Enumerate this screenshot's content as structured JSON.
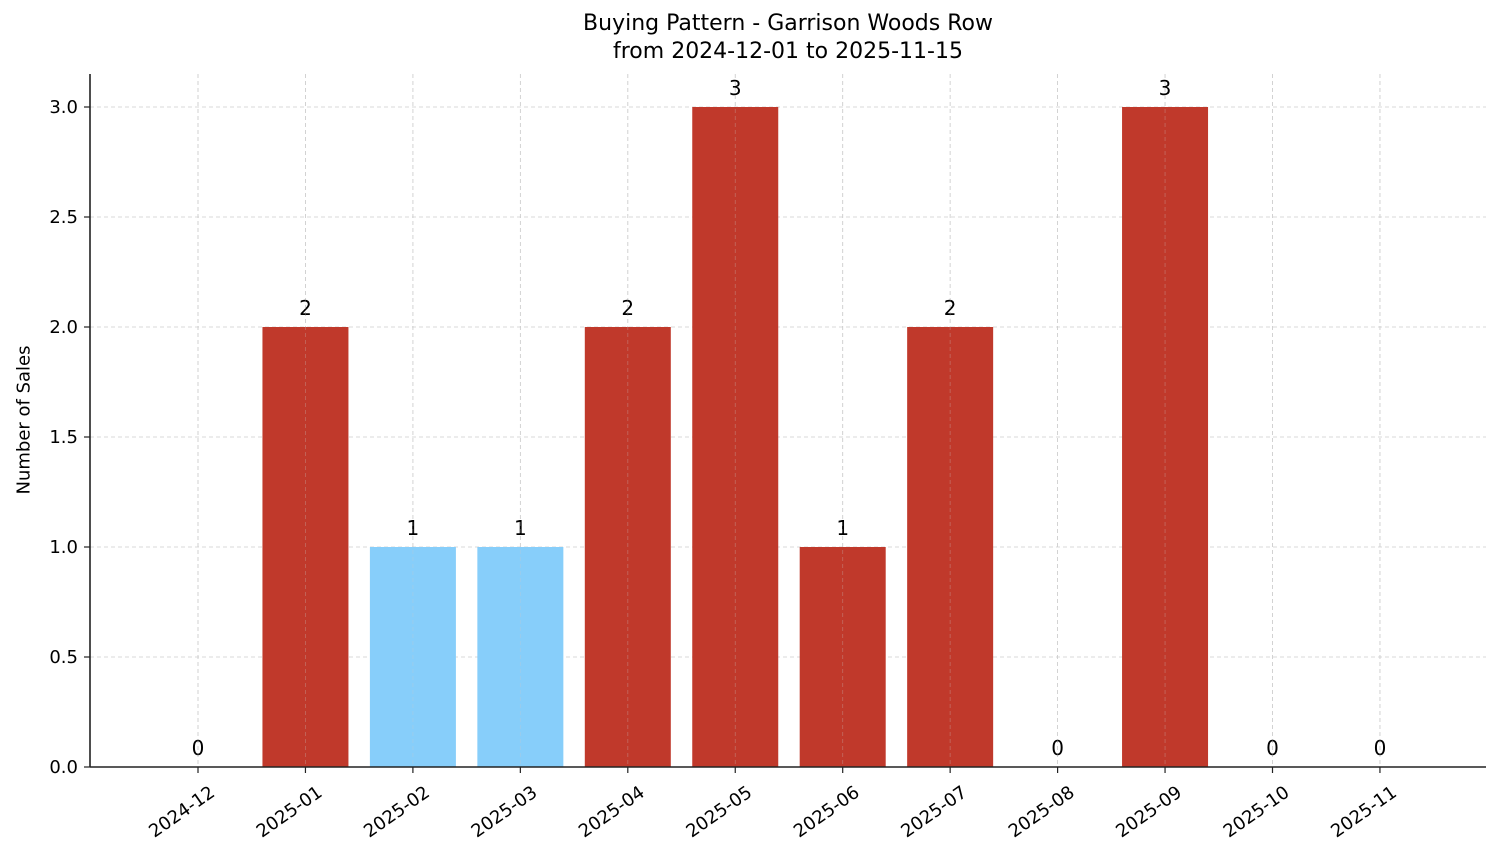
{
  "chart_data": {
    "type": "bar",
    "title": "Buying Pattern - Garrison Woods Row",
    "subtitle": "from 2024-12-01 to 2025-11-15",
    "xlabel": "",
    "ylabel": "Number of Sales",
    "ylim": [
      0,
      3.15
    ],
    "yticks": [
      "0.0",
      "0.5",
      "1.0",
      "1.5",
      "2.0",
      "2.5",
      "3.0"
    ],
    "grid": true,
    "legend": null,
    "categories": [
      "2024-12",
      "2025-01",
      "2025-02",
      "2025-03",
      "2025-04",
      "2025-05",
      "2025-06",
      "2025-07",
      "2025-08",
      "2025-09",
      "2025-10",
      "2025-11"
    ],
    "values": [
      0,
      2,
      1,
      1,
      2,
      3,
      1,
      2,
      0,
      3,
      0,
      0
    ],
    "bar_colors": [
      "#c0392b",
      "#c0392b",
      "#87cefa",
      "#87cefa",
      "#c0392b",
      "#c0392b",
      "#c0392b",
      "#c0392b",
      "#c0392b",
      "#c0392b",
      "#c0392b",
      "#c0392b"
    ],
    "colors": {
      "high": "#c0392b",
      "low": "#87cefa"
    }
  }
}
